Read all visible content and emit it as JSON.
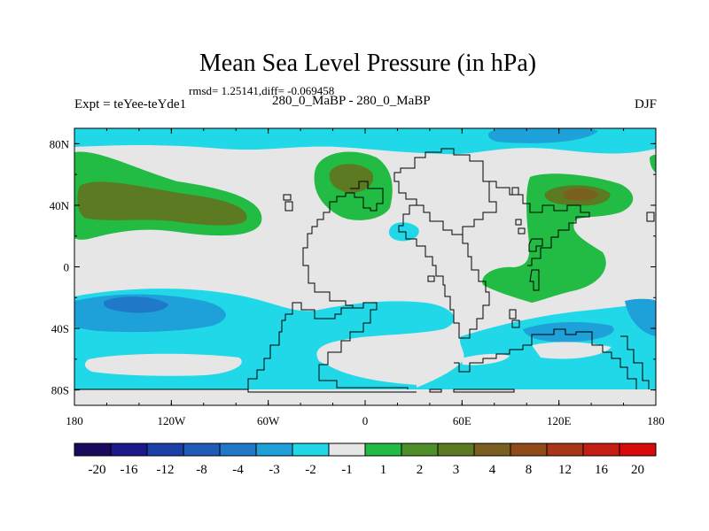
{
  "title": "Mean Sea Level Pressure (in hPa)",
  "stats": "rmsd= 1.25141,diff= -0.069458",
  "experiment": "Expt = teYee-teYde1",
  "subtitle": "280_0_MaBP - 280_0_MaBP",
  "season": "DJF",
  "x_ticks": [
    "180",
    "120W",
    "60W",
    "0",
    "60E",
    "120E",
    "180"
  ],
  "y_ticks": [
    "80N",
    "40N",
    "0",
    "40S",
    "80S"
  ],
  "colorbar": {
    "colors": [
      "#1a0a5e",
      "#1a1a8c",
      "#1c3fa8",
      "#1e5cb8",
      "#1f78c8",
      "#1ea0d8",
      "#20d8e8",
      "#e6e6e6",
      "#22bb44",
      "#4f8f2a",
      "#5c7a22",
      "#7a6020",
      "#8f4a18",
      "#a8341a",
      "#c41e12",
      "#d80a0a"
    ],
    "labels": [
      "-20",
      "-16",
      "-12",
      "-8",
      "-4",
      "-3",
      "-2",
      "-1",
      "1",
      "2",
      "3",
      "4",
      "8",
      "12",
      "16",
      "20"
    ]
  },
  "palette": {
    "neutral": "#e6e6e6",
    "pos1": "#22bb44",
    "pos2": "#5c7a22",
    "pos3": "#7a6020",
    "neg1": "#20d8e8",
    "neg2": "#1ea0d8",
    "neg3": "#1f78c8"
  }
}
